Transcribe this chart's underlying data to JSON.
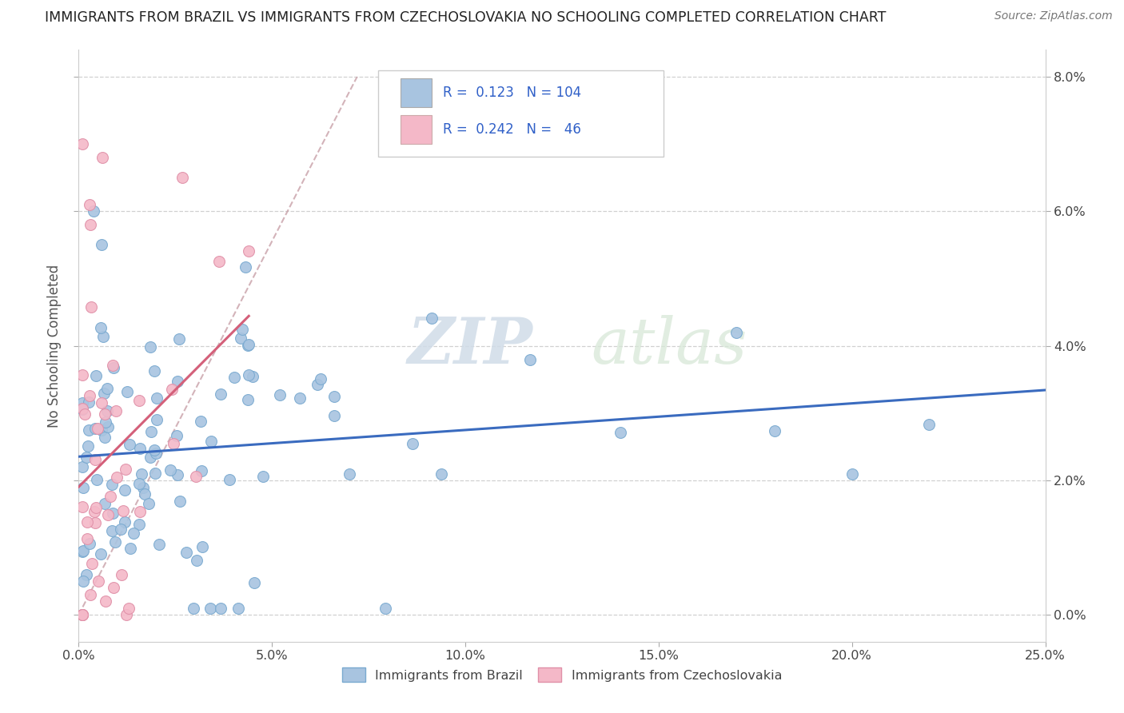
{
  "title": "IMMIGRANTS FROM BRAZIL VS IMMIGRANTS FROM CZECHOSLOVAKIA NO SCHOOLING COMPLETED CORRELATION CHART",
  "source": "Source: ZipAtlas.com",
  "xlabel_ticks": [
    "0.0%",
    "5.0%",
    "10.0%",
    "15.0%",
    "20.0%",
    "25.0%"
  ],
  "ylabel_ticks": [
    "0.0%",
    "2.0%",
    "4.0%",
    "6.0%",
    "8.0%"
  ],
  "ylabel_label": "No Schooling Completed",
  "legend_bottom": [
    "Immigrants from Brazil",
    "Immigrants from Czechoslovakia"
  ],
  "brazil_color": "#a8c4e0",
  "czech_color": "#f4b8c8",
  "brazil_line_color": "#3a6bbf",
  "czech_line_color": "#d4607a",
  "diagonal_color": "#c8a0a8",
  "watermark_zip": "ZIP",
  "watermark_atlas": "atlas",
  "brazil_R": 0.123,
  "brazil_N": 104,
  "czech_R": 0.242,
  "czech_N": 46,
  "xmin": 0.0,
  "xmax": 0.25,
  "ymin": 0.0,
  "ymax": 0.08
}
